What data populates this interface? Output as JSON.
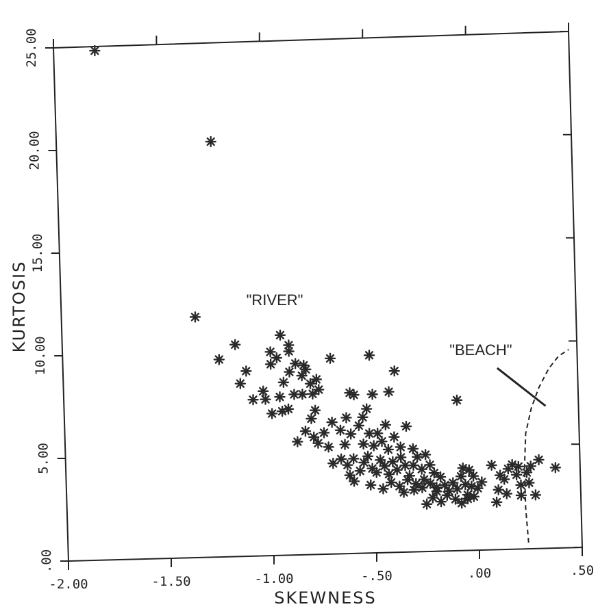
{
  "chart_data": {
    "type": "scatter",
    "title": "",
    "xlabel": "SKEWNESS",
    "ylabel": "KURTOSIS",
    "xlim": [
      -2.0,
      0.5
    ],
    "ylim": [
      0,
      25
    ],
    "x_ticks": [
      -2.0,
      -1.5,
      -1.0,
      -0.5,
      0.0,
      0.5
    ],
    "x_tick_labels": [
      "-2.00",
      "-1.50",
      "-1.00",
      "-.50",
      ".00",
      ".50"
    ],
    "y_ticks": [
      0,
      5,
      10,
      15,
      20,
      25
    ],
    "y_tick_labels": [
      ".00",
      "5.00",
      "10.00",
      "15.00",
      "20.00",
      "25.00"
    ],
    "grid": false,
    "marker": "asterisk",
    "colors": {
      "axis": "#222222",
      "marker": "#2a2a2a"
    },
    "annotations": [
      {
        "text": "\"RIVER\"",
        "x": -1.1,
        "y": 12.2
      },
      {
        "text": "\"BEACH\"",
        "x": -0.12,
        "y": 9.5
      }
    ],
    "beach_pointer": {
      "x": [
        0.11,
        0.34
      ],
      "y": [
        8.8,
        6.9
      ]
    },
    "beach_boundary": {
      "style": "dashed",
      "x": [
        0.24,
        0.23,
        0.23,
        0.24,
        0.27,
        0.31,
        0.36,
        0.41,
        0.46
      ],
      "y": [
        0.3,
        2.0,
        4.0,
        5.6,
        6.8,
        7.8,
        8.7,
        9.3,
        9.6
      ]
    },
    "points": [
      [
        -1.8,
        24.8
      ],
      [
        -1.25,
        20.2
      ],
      [
        -1.35,
        11.7
      ],
      [
        -1.16,
        10.3
      ],
      [
        -1.24,
        9.6
      ],
      [
        -1.11,
        9.0
      ],
      [
        -1.14,
        8.4
      ],
      [
        -1.08,
        7.6
      ],
      [
        -1.03,
        8.0
      ],
      [
        -1.02,
        7.6
      ],
      [
        -0.99,
        9.9
      ],
      [
        -0.99,
        9.3
      ],
      [
        -0.96,
        9.6
      ],
      [
        -0.94,
        10.7
      ],
      [
        -0.9,
        10.2
      ],
      [
        -0.9,
        9.9
      ],
      [
        -0.93,
        8.4
      ],
      [
        -0.9,
        8.9
      ],
      [
        -0.87,
        9.3
      ],
      [
        -0.83,
        9.2
      ],
      [
        -0.82,
        9.0
      ],
      [
        -0.84,
        8.7
      ],
      [
        -0.88,
        7.8
      ],
      [
        -0.84,
        7.8
      ],
      [
        -0.8,
        8.3
      ],
      [
        -0.79,
        7.8
      ],
      [
        -0.76,
        8.0
      ],
      [
        -0.77,
        8.5
      ],
      [
        -0.7,
        9.5
      ],
      [
        -0.99,
        6.9
      ],
      [
        -0.94,
        7.0
      ],
      [
        -0.91,
        7.1
      ],
      [
        -0.95,
        7.7
      ],
      [
        -0.51,
        9.6
      ],
      [
        -0.39,
        8.8
      ],
      [
        -0.61,
        7.8
      ],
      [
        -0.5,
        7.7
      ],
      [
        -0.42,
        7.8
      ],
      [
        -0.59,
        7.7
      ],
      [
        -0.09,
        7.3
      ],
      [
        -0.87,
        5.5
      ],
      [
        -0.83,
        6.0
      ],
      [
        -0.8,
        6.6
      ],
      [
        -0.78,
        7.0
      ],
      [
        -0.79,
        5.7
      ],
      [
        -0.77,
        5.4
      ],
      [
        -0.74,
        5.9
      ],
      [
        -0.7,
        6.4
      ],
      [
        -0.72,
        5.2
      ],
      [
        -0.7,
        4.4
      ],
      [
        -0.66,
        6.0
      ],
      [
        -0.64,
        5.3
      ],
      [
        -0.63,
        6.6
      ],
      [
        -0.61,
        5.8
      ],
      [
        -0.6,
        4.6
      ],
      [
        -0.57,
        6.2
      ],
      [
        -0.55,
        6.6
      ],
      [
        -0.53,
        7.0
      ],
      [
        -0.55,
        5.3
      ],
      [
        -0.52,
        5.8
      ],
      [
        -0.5,
        5.2
      ],
      [
        -0.48,
        5.8
      ],
      [
        -0.46,
        5.4
      ],
      [
        -0.44,
        6.2
      ],
      [
        -0.43,
        5.0
      ],
      [
        -0.4,
        5.6
      ],
      [
        -0.37,
        5.1
      ],
      [
        -0.34,
        6.1
      ],
      [
        -0.31,
        5.0
      ],
      [
        -0.66,
        4.6
      ],
      [
        -0.63,
        4.3
      ],
      [
        -0.62,
        3.8
      ],
      [
        -0.6,
        3.5
      ],
      [
        -0.57,
        4.0
      ],
      [
        -0.55,
        4.4
      ],
      [
        -0.53,
        4.7
      ],
      [
        -0.51,
        4.1
      ],
      [
        -0.49,
        3.9
      ],
      [
        -0.47,
        4.5
      ],
      [
        -0.45,
        4.2
      ],
      [
        -0.43,
        3.8
      ],
      [
        -0.41,
        4.4
      ],
      [
        -0.39,
        4.0
      ],
      [
        -0.37,
        4.6
      ],
      [
        -0.35,
        4.2
      ],
      [
        -0.33,
        3.7
      ],
      [
        -0.31,
        4.2
      ],
      [
        -0.29,
        4.6
      ],
      [
        -0.27,
        4.0
      ],
      [
        -0.25,
        4.7
      ],
      [
        -0.23,
        4.2
      ],
      [
        -0.21,
        3.8
      ],
      [
        -0.26,
        3.5
      ],
      [
        -0.3,
        3.3
      ],
      [
        -0.34,
        3.5
      ],
      [
        -0.38,
        3.2
      ],
      [
        -0.42,
        3.4
      ],
      [
        -0.46,
        3.1
      ],
      [
        -0.52,
        3.3
      ],
      [
        -0.36,
        2.9
      ],
      [
        -0.31,
        3.0
      ],
      [
        -0.27,
        3.1
      ],
      [
        -0.23,
        3.3
      ],
      [
        -0.2,
        3.1
      ],
      [
        -0.18,
        3.6
      ],
      [
        -0.16,
        3.2
      ],
      [
        -0.14,
        2.9
      ],
      [
        -0.12,
        3.3
      ],
      [
        -0.1,
        3.0
      ],
      [
        -0.08,
        3.6
      ],
      [
        -0.06,
        3.2
      ],
      [
        -0.05,
        2.7
      ],
      [
        -0.03,
        3.1
      ],
      [
        -0.02,
        3.6
      ],
      [
        0.0,
        3.0
      ],
      [
        0.02,
        3.3
      ],
      [
        -0.22,
        2.6
      ],
      [
        -0.18,
        2.4
      ],
      [
        -0.15,
        2.7
      ],
      [
        -0.11,
        2.5
      ],
      [
        -0.08,
        2.3
      ],
      [
        -0.05,
        2.5
      ],
      [
        -0.02,
        2.6
      ],
      [
        -0.25,
        2.3
      ],
      [
        -0.2,
        2.9
      ],
      [
        -0.07,
        4.0
      ],
      [
        -0.04,
        3.9
      ],
      [
        0.07,
        4.1
      ],
      [
        0.1,
        2.9
      ],
      [
        0.11,
        3.6
      ],
      [
        0.09,
        2.3
      ],
      [
        0.13,
        3.4
      ],
      [
        0.15,
        3.9
      ],
      [
        0.17,
        4.1
      ],
      [
        0.19,
        3.6
      ],
      [
        0.21,
        3.1
      ],
      [
        0.24,
        3.7
      ],
      [
        0.26,
        4.0
      ],
      [
        0.3,
        4.3
      ],
      [
        0.28,
        2.6
      ],
      [
        0.25,
        3.2
      ],
      [
        0.2,
        4.0
      ],
      [
        0.38,
        3.9
      ],
      [
        0.21,
        2.6
      ],
      [
        0.14,
        2.7
      ]
    ]
  }
}
